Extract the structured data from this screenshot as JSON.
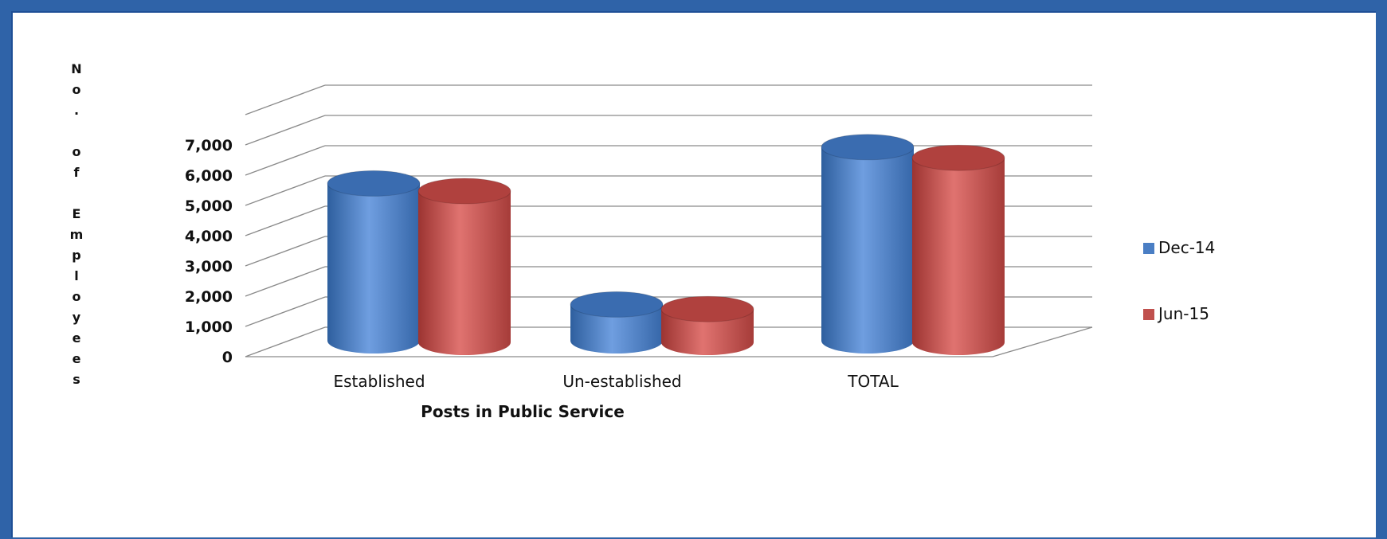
{
  "chart_data": {
    "type": "bar",
    "style": "3d-cylinder",
    "title": "",
    "xlabel": "Posts in Public Service",
    "ylabel": "No. of Employees",
    "categories": [
      "Established",
      "Un-established",
      "TOTAL"
    ],
    "series": [
      {
        "name": "Dec-14",
        "color": "#4a7ec4",
        "values": [
          5200,
          1200,
          6400
        ]
      },
      {
        "name": "Jun-15",
        "color": "#c0504d",
        "values": [
          5000,
          1100,
          6100
        ]
      }
    ],
    "ylim": [
      0,
      7000
    ],
    "yticks": [
      0,
      1000,
      2000,
      3000,
      4000,
      5000,
      6000,
      7000
    ],
    "ytick_labels": [
      "0",
      "1,000",
      "2,000",
      "3,000",
      "4,000",
      "5,000",
      "6,000",
      "7,000"
    ],
    "grid": true,
    "legend_position": "right"
  }
}
